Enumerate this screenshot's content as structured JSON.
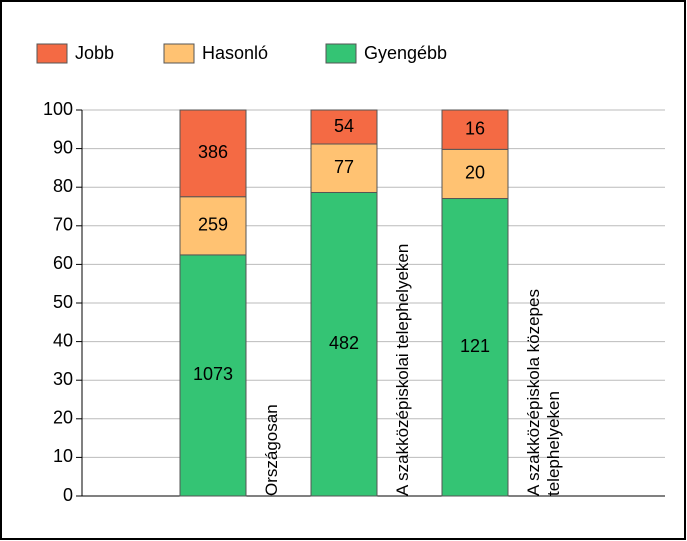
{
  "chart_data": {
    "type": "bar",
    "stacked": "percent",
    "categories": [
      "Országosan",
      "A szakközépiskolai telephelyeken",
      "A szakközépiskola közepes telephelyeken"
    ],
    "series": [
      {
        "name": "Jobb",
        "color": "#f46a44",
        "values": [
          386,
          54,
          16
        ]
      },
      {
        "name": "Hasonló",
        "color": "#ffc272",
        "values": [
          259,
          77,
          20
        ]
      },
      {
        "name": "Gyengébb",
        "color": "#34c474",
        "values": [
          1073,
          482,
          121
        ]
      }
    ],
    "ylim": [
      0,
      100
    ],
    "yticks": [
      0,
      10,
      20,
      30,
      40,
      50,
      60,
      70,
      80,
      90,
      100
    ],
    "grid": true
  }
}
